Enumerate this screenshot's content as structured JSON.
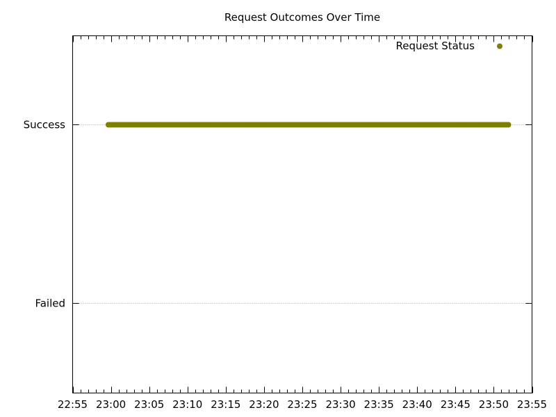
{
  "colors": {
    "series": "#808000",
    "grid": "#a0a0a0",
    "axis": "#000000"
  },
  "chart_data": {
    "type": "scatter",
    "title": "Request Outcomes Over Time",
    "xlabel": "",
    "ylabel": "",
    "x_axis": {
      "type": "time",
      "range": [
        "22:55",
        "23:55"
      ],
      "ticks": [
        "22:55",
        "23:00",
        "23:05",
        "23:10",
        "23:15",
        "23:20",
        "23:25",
        "23:30",
        "23:35",
        "23:40",
        "23:45",
        "23:50",
        "23:55"
      ],
      "minor_ticks_per_major": 5
    },
    "y_axis": {
      "type": "category",
      "categories": [
        "Failed",
        "Success"
      ],
      "grid": true
    },
    "legend": {
      "position": "top-right",
      "entries": [
        "Request Status"
      ]
    },
    "series": [
      {
        "name": "Request Status",
        "marker": "circle",
        "points_summary": "continuous requests, one every ~15 seconds",
        "x_start": "22:59:40",
        "x_end": "23:52:00",
        "y": "Success"
      }
    ]
  }
}
